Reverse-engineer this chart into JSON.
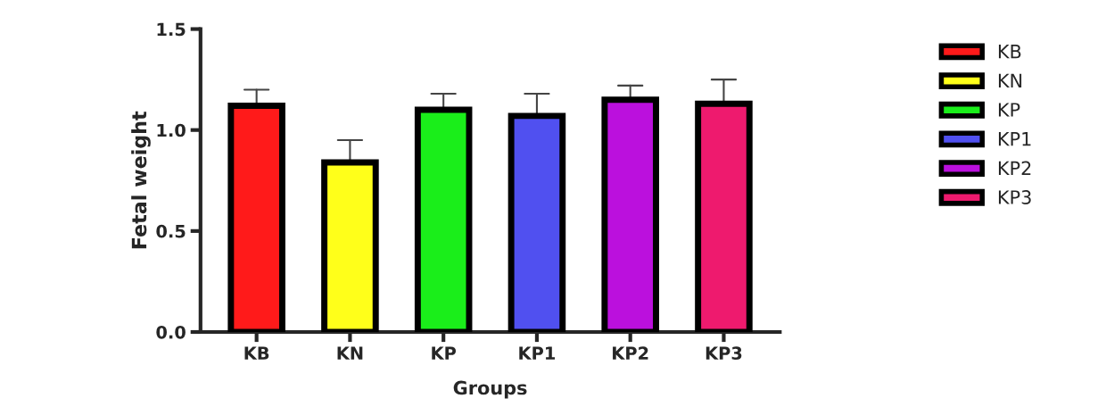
{
  "chart_data": {
    "type": "bar",
    "xlabel": "Groups",
    "ylabel": "Fetal weight",
    "categories": [
      "KB",
      "KN",
      "KP",
      "KP1",
      "KP2",
      "KP3"
    ],
    "series": [
      {
        "name": "KB",
        "color": "#ff1a1a",
        "values": [
          1.12,
          null,
          null,
          null,
          null,
          null
        ],
        "errors": [
          [
            1.12,
            1.2
          ],
          null,
          null,
          null,
          null,
          null
        ]
      },
      {
        "name": "KN",
        "color": "#ffff1a",
        "values": [
          null,
          0.84,
          null,
          null,
          null,
          null
        ],
        "errors": [
          null,
          [
            0.84,
            0.95
          ],
          null,
          null,
          null,
          null
        ]
      },
      {
        "name": "KP",
        "color": "#1aee1a",
        "values": [
          null,
          null,
          1.1,
          null,
          null,
          null
        ],
        "errors": [
          null,
          null,
          [
            1.1,
            1.18
          ],
          null,
          null,
          null
        ]
      },
      {
        "name": "KP1",
        "color": "#5050f0",
        "values": [
          null,
          null,
          null,
          1.07,
          null,
          null
        ],
        "errors": [
          null,
          null,
          null,
          [
            1.07,
            1.18
          ],
          null,
          null
        ]
      },
      {
        "name": "KP2",
        "color": "#bb10dd",
        "values": [
          null,
          null,
          null,
          null,
          1.15,
          null
        ],
        "errors": [
          null,
          null,
          null,
          null,
          [
            1.15,
            1.22
          ],
          null
        ]
      },
      {
        "name": "KP3",
        "color": "#ee1a6e",
        "values": [
          null,
          null,
          null,
          null,
          null,
          1.13
        ],
        "errors": [
          null,
          null,
          null,
          null,
          null,
          [
            1.13,
            1.25
          ]
        ]
      }
    ],
    "ylim": [
      0,
      1.5
    ],
    "yticks": [
      {
        "value": 0,
        "label": "0.0"
      },
      {
        "value": 0.5,
        "label": "0.5"
      },
      {
        "value": 1,
        "label": "1.0"
      },
      {
        "value": 1.5,
        "label": "1.5"
      }
    ],
    "grid": false,
    "legend": "right"
  }
}
